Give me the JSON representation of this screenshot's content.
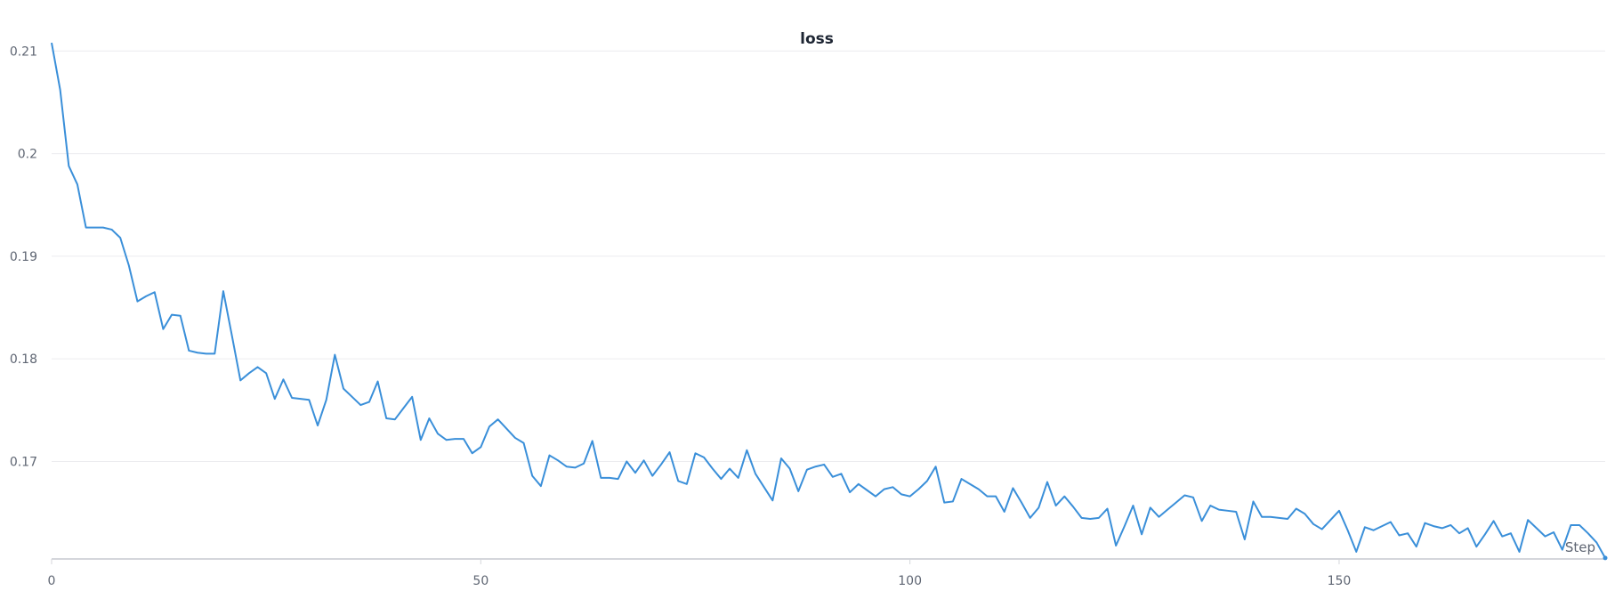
{
  "chart_data": {
    "type": "line",
    "title": "loss",
    "xlabel": "Step",
    "ylabel": "",
    "xlim": [
      0,
      181
    ],
    "ylim": [
      0.1605,
      0.2115
    ],
    "x_ticks": [
      0,
      50,
      100,
      150
    ],
    "y_ticks": [
      0.17,
      0.18,
      0.19,
      0.2,
      0.21
    ],
    "y_tick_labels": [
      "0.17",
      "0.18",
      "0.19",
      "0.2",
      "0.21"
    ],
    "grid": "horizontal",
    "legend": "none",
    "color": "#3a8fd9",
    "series": [
      {
        "values": [
          0.2108,
          0.2062,
          0.1988,
          0.197,
          0.1928,
          0.1928,
          0.1928,
          0.1926,
          0.1918,
          0.1891,
          0.1856,
          0.1861,
          0.1865,
          0.1829,
          0.1843,
          0.1842,
          0.1808,
          0.1806,
          0.1805,
          0.1805,
          0.1866,
          0.1823,
          0.1779,
          0.1786,
          0.1792,
          0.1786,
          0.1761,
          0.178,
          0.1762,
          0.1761,
          0.176,
          0.1735,
          0.176,
          0.1804,
          0.1771,
          0.1763,
          0.1755,
          0.1758,
          0.1778,
          0.1742,
          0.1741,
          0.1752,
          0.1763,
          0.1721,
          0.1742,
          0.1727,
          0.1721,
          0.1722,
          0.1722,
          0.1708,
          0.1714,
          0.1734,
          0.1741,
          0.1732,
          0.1723,
          0.1718,
          0.1686,
          0.1676,
          0.1706,
          0.1701,
          0.1695,
          0.1694,
          0.1698,
          0.172,
          0.1684,
          0.1684,
          0.1683,
          0.17,
          0.1689,
          0.1701,
          0.1686,
          0.1697,
          0.1709,
          0.1681,
          0.1678,
          0.1708,
          0.1704,
          0.1693,
          0.1683,
          0.1693,
          0.1684,
          0.1711,
          0.1688,
          0.1675,
          0.1662,
          0.1703,
          0.1693,
          0.1671,
          0.1692,
          0.1695,
          0.1697,
          0.1685,
          0.1688,
          0.167,
          0.1678,
          0.1672,
          0.1666,
          0.1673,
          0.1675,
          0.1668,
          0.1666,
          0.1673,
          0.1681,
          0.1695,
          0.166,
          0.1661,
          0.1683,
          0.1678,
          0.1673,
          0.1666,
          0.1666,
          0.1651,
          0.1674,
          0.166,
          0.1645,
          0.1655,
          0.168,
          0.1657,
          0.1666,
          0.1656,
          0.1645,
          0.1644,
          0.1645,
          0.1654,
          0.1618,
          0.1637,
          0.1657,
          0.1629,
          0.1655,
          0.1646,
          0.1653,
          0.166,
          0.1667,
          0.1665,
          0.1642,
          0.1657,
          0.1653,
          0.1652,
          0.1651,
          0.1624,
          0.1661,
          0.1646,
          0.1646,
          0.1645,
          0.1644,
          0.1654,
          0.1649,
          0.1639,
          0.1634,
          0.1643,
          0.1652,
          0.1633,
          0.1612,
          0.1636,
          0.1633,
          0.1637,
          0.1641,
          0.1628,
          0.163,
          0.1617,
          0.164,
          0.1637,
          0.1635,
          0.1638,
          0.163,
          0.1635,
          0.1617,
          0.1629,
          0.1642,
          0.1627,
          0.163,
          0.1612,
          0.1643,
          0.1635,
          0.1627,
          0.1631,
          0.1614,
          0.1638,
          0.1638,
          0.163,
          0.1621,
          0.1606
        ]
      }
    ]
  }
}
